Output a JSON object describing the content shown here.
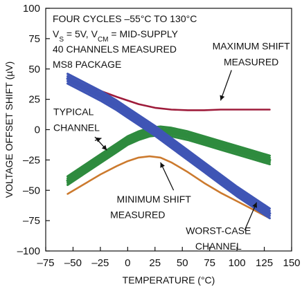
{
  "chart_data": {
    "type": "line",
    "title": "",
    "xlabel": "TEMPERATURE (°C)",
    "ylabel": "VOLTAGE OFFSET SHIFT (µV)",
    "xlim": [
      -75,
      150
    ],
    "ylim": [
      -100,
      100
    ],
    "x_ticks": [
      -75,
      -50,
      -25,
      0,
      25,
      50,
      75,
      100,
      125,
      150
    ],
    "y_ticks": [
      -100,
      -75,
      -50,
      -25,
      0,
      25,
      50,
      75,
      100
    ],
    "x_tick_labels": [
      "–75",
      "–50",
      "–25",
      "0",
      "25",
      "50",
      "75",
      "100",
      "125",
      "150"
    ],
    "y_tick_labels": [
      "–100",
      "–75",
      "–50",
      "–25",
      "0",
      "25",
      "50",
      "75",
      "100"
    ],
    "grid": false,
    "info_lines": [
      "FOUR CYCLES –55°C TO 130°C",
      "V_S = 5V, V_CM = MID-SUPPLY",
      "40 CHANNELS MEASURED",
      "MS8 PACKAGE"
    ],
    "annotations": [
      {
        "text": [
          "MAXIMUM SHIFT",
          "MEASURED"
        ],
        "target_series": "maximum"
      },
      {
        "text": [
          "TYPICAL",
          "CHANNEL"
        ],
        "target_series": "typical"
      },
      {
        "text": [
          "MINIMUM SHIFT",
          "MEASURED"
        ],
        "target_series": "minimum"
      },
      {
        "text": [
          "WORST-CASE",
          "CHANNEL"
        ],
        "target_series": "worst-case"
      }
    ],
    "series": [
      {
        "key": "maximum",
        "color": "#9e1b3a",
        "x": [
          -55,
          -40,
          -25,
          -10,
          0,
          10,
          25,
          40,
          55,
          70,
          85,
          100,
          115,
          130
        ],
        "y": [
          42,
          37,
          32,
          27,
          24,
          21,
          18,
          16.5,
          16,
          16,
          16.5,
          16.5,
          16.5,
          16.5
        ]
      },
      {
        "key": "minimum",
        "color": "#cc7a2e",
        "x": [
          -55,
          -40,
          -25,
          -10,
          0,
          10,
          20,
          30,
          40,
          55,
          70,
          85,
          100,
          115,
          130
        ],
        "y": [
          -53,
          -45,
          -37,
          -30,
          -26,
          -23,
          -22,
          -23,
          -27,
          -35,
          -44,
          -52,
          -59,
          -66,
          -73
        ]
      },
      {
        "key": "typical",
        "color": "#2e8b3e",
        "x": [
          -55,
          -40,
          -25,
          -10,
          0,
          10,
          20,
          30,
          40,
          55,
          70,
          85,
          100,
          115,
          130
        ],
        "y": [
          -42,
          -33,
          -24,
          -15,
          -9,
          -5,
          -2,
          -1,
          -2,
          -5,
          -9,
          -13,
          -17,
          -21,
          -25
        ],
        "band": 3.5
      },
      {
        "key": "worst-case",
        "color": "#3f55b5",
        "x": [
          -55,
          -40,
          -25,
          -10,
          0,
          10,
          25,
          40,
          55,
          70,
          85,
          100,
          115,
          130
        ],
        "y": [
          42,
          35,
          28,
          20,
          14,
          8,
          -1,
          -11,
          -21,
          -31,
          -41,
          -51,
          -60,
          -69
        ],
        "band": 4
      }
    ]
  }
}
